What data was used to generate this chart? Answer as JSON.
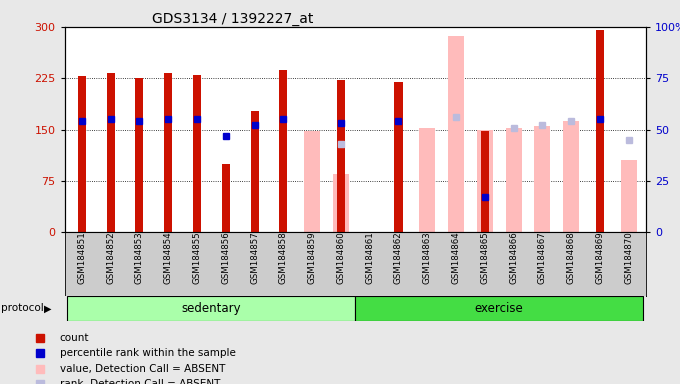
{
  "title": "GDS3134 / 1392227_at",
  "samples": [
    "GSM184851",
    "GSM184852",
    "GSM184853",
    "GSM184854",
    "GSM184855",
    "GSM184856",
    "GSM184857",
    "GSM184858",
    "GSM184859",
    "GSM184860",
    "GSM184861",
    "GSM184862",
    "GSM184863",
    "GSM184864",
    "GSM184865",
    "GSM184866",
    "GSM184867",
    "GSM184868",
    "GSM184869",
    "GSM184870"
  ],
  "count_values": [
    228,
    232,
    225,
    232,
    230,
    100,
    177,
    237,
    null,
    222,
    null,
    220,
    null,
    null,
    148,
    null,
    null,
    null,
    295,
    null
  ],
  "percentile_rank": [
    54,
    55,
    54,
    55,
    55,
    47,
    52,
    55,
    null,
    53,
    null,
    54,
    null,
    null,
    17,
    null,
    null,
    null,
    55,
    null
  ],
  "absent_value": [
    null,
    null,
    null,
    null,
    null,
    null,
    null,
    null,
    148,
    85,
    null,
    null,
    153,
    287,
    150,
    152,
    155,
    163,
    null,
    105
  ],
  "absent_rank": [
    null,
    null,
    null,
    null,
    null,
    null,
    null,
    null,
    null,
    43,
    null,
    null,
    null,
    56,
    null,
    51,
    52,
    54,
    null,
    45
  ],
  "sedentary_count": 10,
  "exercise_count": 10,
  "ylim_left": [
    0,
    300
  ],
  "ylim_right": [
    0,
    100
  ],
  "yticks_left": [
    0,
    75,
    150,
    225,
    300
  ],
  "yticks_right": [
    0,
    25,
    50,
    75,
    100
  ],
  "count_color": "#cc1100",
  "percentile_color": "#0000cc",
  "absent_value_color": "#ffbbbb",
  "absent_rank_color": "#bbbbdd",
  "sedentary_color": "#aaffaa",
  "exercise_color": "#44dd44",
  "plot_bg": "#ffffff",
  "fig_bg": "#e8e8e8",
  "xtick_bg": "#cccccc",
  "legend_items": [
    {
      "label": "count",
      "color": "#cc1100"
    },
    {
      "label": "percentile rank within the sample",
      "color": "#0000cc"
    },
    {
      "label": "value, Detection Call = ABSENT",
      "color": "#ffbbbb"
    },
    {
      "label": "rank, Detection Call = ABSENT",
      "color": "#bbbbdd"
    }
  ]
}
